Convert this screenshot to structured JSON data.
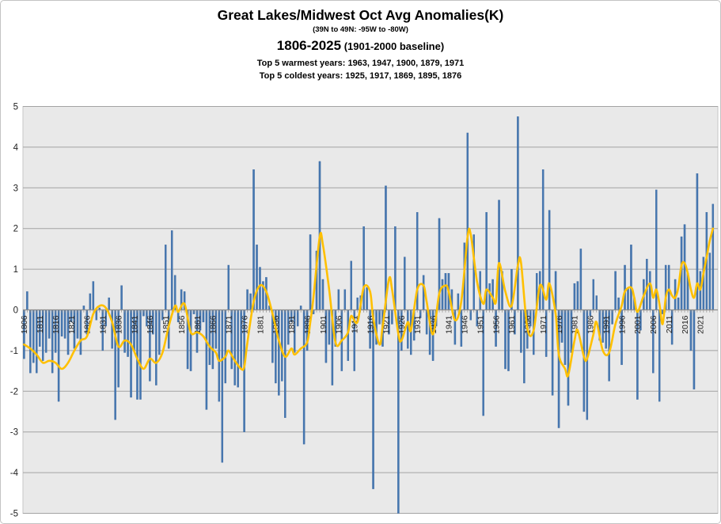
{
  "header": {
    "title": "Great Lakes/Midwest Oct Avg Anomalies(K)",
    "region": "(39N to 49N: -95W  to  -80W)",
    "period": "1806-2025",
    "baseline": " (1901-2000 baseline)",
    "warmest": "Top 5 warmest years: 1963,  1947,  1900,  1879,  1971",
    "coldest": "Top 5 coldest years: 1925,  1917,  1869,  1895,  1876"
  },
  "chart_data": {
    "type": "bar",
    "title": "Great Lakes/Midwest Oct Avg Anomalies(K)",
    "subtitle": "(39N to 49N: -95W to -80W)",
    "period_label": "1806-2025 (1901-2000 baseline)",
    "annotations": [
      "Top 5 warmest years: 1963, 1947, 1900, 1879, 1971",
      "Top 5 coldest years: 1925, 1917, 1869, 1895, 1876"
    ],
    "xlabel": "",
    "ylabel": "",
    "ylim": [
      -5,
      5
    ],
    "y_ticks": [
      5,
      4,
      3,
      2,
      1,
      0,
      -1,
      -2,
      -3,
      -4,
      -5
    ],
    "x_tick_years": [
      1806,
      1811,
      1816,
      1821,
      1826,
      1831,
      1836,
      1841,
      1846,
      1851,
      1856,
      1861,
      1866,
      1871,
      1876,
      1881,
      1886,
      1891,
      1896,
      1901,
      1906,
      1911,
      1916,
      1921,
      1926,
      1931,
      1936,
      1941,
      1946,
      1951,
      1956,
      1961,
      1966,
      1971,
      1976,
      1981,
      1986,
      1991,
      1996,
      2001,
      2006,
      2011,
      2016,
      2021
    ],
    "grid": true,
    "legend_position": "none",
    "bar_color": "#4677b0",
    "bar_edge_color": "#32619b",
    "line_color": "#ffc000",
    "plot_bg": "#e9e9e9",
    "grid_color": "#a3a3a3",
    "axis_color": "#8c8c8c",
    "tick_label_color": "#1f1f1f",
    "start_year": 1806,
    "end_year": 2025,
    "series": [
      {
        "name": "annual-oct-anomaly-K",
        "type": "bar",
        "start_year": 1806,
        "values": [
          -1.2,
          0.45,
          -1.55,
          -1.3,
          -1.55,
          -0.9,
          -1.25,
          -1.05,
          -0.7,
          -1.55,
          -1.05,
          -2.25,
          -0.65,
          -0.7,
          -1.1,
          -0.3,
          -0.95,
          -0.7,
          -1.1,
          0.1,
          -0.6,
          0.4,
          0.7,
          -0.25,
          0.05,
          -1.0,
          -0.4,
          0.3,
          -0.95,
          -2.7,
          -1.9,
          0.6,
          -1.05,
          -1.15,
          -2.15,
          -1.0,
          -2.2,
          -2.2,
          -0.15,
          -0.4,
          -1.75,
          -0.6,
          -1.85,
          -1.1,
          -0.25,
          1.6,
          -0.95,
          1.95,
          0.85,
          -0.3,
          0.5,
          0.45,
          -1.45,
          -1.5,
          -0.1,
          -1.05,
          -0.5,
          -0.3,
          -2.45,
          -1.35,
          -1.45,
          -0.95,
          -2.25,
          -3.75,
          -1.8,
          1.1,
          -1.45,
          -1.85,
          -1.9,
          -1.45,
          -3.0,
          0.5,
          0.4,
          3.45,
          1.6,
          1.05,
          0.7,
          0.8,
          0.1,
          -1.3,
          -1.8,
          -2.1,
          -1.75,
          -2.65,
          -0.85,
          -0.3,
          -1.05,
          -0.4,
          0.1,
          -3.3,
          -1.0,
          1.85,
          -0.1,
          1.45,
          3.65,
          0.75,
          -1.3,
          -0.85,
          -1.85,
          -0.9,
          0.5,
          -1.5,
          0.5,
          -1.25,
          1.2,
          -1.5,
          0.3,
          0.35,
          2.05,
          0.55,
          -0.95,
          -4.4,
          -0.85,
          -0.35,
          -0.9,
          3.05,
          -0.6,
          -0.35,
          2.05,
          -5.0,
          -1.0,
          1.3,
          -0.95,
          -1.1,
          -0.75,
          2.4,
          -0.2,
          0.85,
          -0.6,
          -1.1,
          -1.25,
          -0.4,
          2.25,
          0.75,
          0.9,
          0.9,
          0.5,
          -0.85,
          0.4,
          -0.9,
          1.65,
          4.35,
          -0.25,
          1.85,
          -0.4,
          0.95,
          -2.6,
          2.4,
          0.65,
          0.75,
          -0.9,
          2.7,
          0.95,
          -1.45,
          -1.5,
          1.0,
          -0.6,
          4.75,
          -1.05,
          -1.8,
          -0.95,
          -0.4,
          -1.1,
          0.9,
          0.95,
          3.45,
          -1.15,
          2.45,
          -2.1,
          0.95,
          -2.9,
          -0.8,
          -1.35,
          -2.35,
          -1.05,
          0.65,
          0.7,
          1.5,
          -2.5,
          -2.7,
          -0.15,
          0.75,
          0.35,
          -0.75,
          -0.8,
          -0.95,
          -1.75,
          -0.35,
          0.95,
          0.3,
          -1.35,
          1.1,
          0.55,
          1.6,
          0.3,
          -2.2,
          -0.5,
          0.75,
          1.25,
          0.95,
          -1.55,
          2.95,
          -2.25,
          -0.1,
          1.1,
          1.1,
          -0.85,
          0.75,
          0.3,
          1.8,
          2.1,
          0.9,
          -1.0,
          -1.95,
          3.35,
          0.95,
          1.3,
          2.4,
          1.4,
          2.6
        ]
      },
      {
        "name": "smoothed-overlay",
        "type": "line",
        "points": [
          [
            1806,
            -0.85
          ],
          [
            1808,
            -0.95
          ],
          [
            1810,
            -1.1
          ],
          [
            1812,
            -1.3
          ],
          [
            1814,
            -1.25
          ],
          [
            1816,
            -1.3
          ],
          [
            1818,
            -1.45
          ],
          [
            1820,
            -1.3
          ],
          [
            1822,
            -1.0
          ],
          [
            1824,
            -0.75
          ],
          [
            1826,
            -0.65
          ],
          [
            1828,
            -0.1
          ],
          [
            1830,
            0.1
          ],
          [
            1832,
            0.05
          ],
          [
            1834,
            -0.3
          ],
          [
            1836,
            -0.9
          ],
          [
            1838,
            -0.75
          ],
          [
            1840,
            -0.85
          ],
          [
            1842,
            -1.2
          ],
          [
            1844,
            -1.45
          ],
          [
            1846,
            -1.2
          ],
          [
            1848,
            -1.3
          ],
          [
            1850,
            -1.05
          ],
          [
            1852,
            -0.4
          ],
          [
            1854,
            0.1
          ],
          [
            1855,
            -0.05
          ],
          [
            1857,
            0.15
          ],
          [
            1859,
            -0.55
          ],
          [
            1861,
            -0.55
          ],
          [
            1863,
            -0.65
          ],
          [
            1865,
            -0.9
          ],
          [
            1867,
            -1.05
          ],
          [
            1868,
            -1.25
          ],
          [
            1870,
            -1.15
          ],
          [
            1871,
            -1.0
          ],
          [
            1873,
            -1.25
          ],
          [
            1875,
            -1.45
          ],
          [
            1876,
            -1.4
          ],
          [
            1877,
            -0.8
          ],
          [
            1879,
            0.2
          ],
          [
            1881,
            0.6
          ],
          [
            1883,
            0.45
          ],
          [
            1885,
            -0.1
          ],
          [
            1887,
            -0.75
          ],
          [
            1889,
            -1.15
          ],
          [
            1891,
            -0.95
          ],
          [
            1892,
            -1.1
          ],
          [
            1894,
            -0.95
          ],
          [
            1896,
            -0.8
          ],
          [
            1897,
            -0.3
          ],
          [
            1898,
            0.3
          ],
          [
            1900,
            1.8
          ],
          [
            1901,
            1.6
          ],
          [
            1903,
            0.5
          ],
          [
            1905,
            -0.8
          ],
          [
            1907,
            -0.75
          ],
          [
            1909,
            -0.55
          ],
          [
            1910,
            -0.15
          ],
          [
            1912,
            -0.3
          ],
          [
            1914,
            0.55
          ],
          [
            1916,
            0.45
          ],
          [
            1917,
            -0.2
          ],
          [
            1919,
            -0.85
          ],
          [
            1920,
            -0.4
          ],
          [
            1922,
            0.75
          ],
          [
            1923,
            0.5
          ],
          [
            1925,
            -0.6
          ],
          [
            1926,
            -0.75
          ],
          [
            1928,
            -0.3
          ],
          [
            1929,
            -0.5
          ],
          [
            1931,
            0.5
          ],
          [
            1933,
            0.6
          ],
          [
            1934,
            0.2
          ],
          [
            1936,
            -0.6
          ],
          [
            1938,
            0.4
          ],
          [
            1940,
            0.6
          ],
          [
            1941,
            0.45
          ],
          [
            1943,
            -0.25
          ],
          [
            1945,
            0.2
          ],
          [
            1947,
            1.8
          ],
          [
            1948,
            1.85
          ],
          [
            1950,
            0.7
          ],
          [
            1952,
            0.15
          ],
          [
            1953,
            0.5
          ],
          [
            1955,
            0.3
          ],
          [
            1956,
            0.2
          ],
          [
            1957,
            1.15
          ],
          [
            1959,
            0.45
          ],
          [
            1961,
            0.1
          ],
          [
            1963,
            1.1
          ],
          [
            1964,
            1.15
          ],
          [
            1966,
            -0.45
          ],
          [
            1968,
            -0.5
          ],
          [
            1970,
            0.6
          ],
          [
            1972,
            0.25
          ],
          [
            1973,
            0.65
          ],
          [
            1975,
            -0.1
          ],
          [
            1976,
            -1.1
          ],
          [
            1978,
            -1.45
          ],
          [
            1979,
            -1.6
          ],
          [
            1981,
            -0.75
          ],
          [
            1982,
            -0.5
          ],
          [
            1984,
            -1.15
          ],
          [
            1985,
            -1.2
          ],
          [
            1987,
            -0.6
          ],
          [
            1988,
            -0.3
          ],
          [
            1990,
            -1.0
          ],
          [
            1992,
            -1.05
          ],
          [
            1994,
            -0.35
          ],
          [
            1996,
            0.1
          ],
          [
            1997,
            0.45
          ],
          [
            1999,
            0.55
          ],
          [
            2000,
            0.3
          ],
          [
            2001,
            -0.05
          ],
          [
            2003,
            0.35
          ],
          [
            2005,
            0.65
          ],
          [
            2006,
            0.3
          ],
          [
            2007,
            0.5
          ],
          [
            2008,
            0.15
          ],
          [
            2009,
            -0.35
          ],
          [
            2010,
            0.3
          ],
          [
            2011,
            0.5
          ],
          [
            2012,
            0.35
          ],
          [
            2013,
            0.3
          ],
          [
            2014,
            0.55
          ],
          [
            2015,
            1.1
          ],
          [
            2016,
            1.15
          ],
          [
            2017,
            0.9
          ],
          [
            2018,
            0.5
          ],
          [
            2019,
            0.3
          ],
          [
            2020,
            0.65
          ],
          [
            2021,
            0.5
          ],
          [
            2022,
            0.9
          ],
          [
            2023,
            1.3
          ],
          [
            2024,
            1.7
          ],
          [
            2025,
            2.0
          ]
        ]
      }
    ]
  }
}
